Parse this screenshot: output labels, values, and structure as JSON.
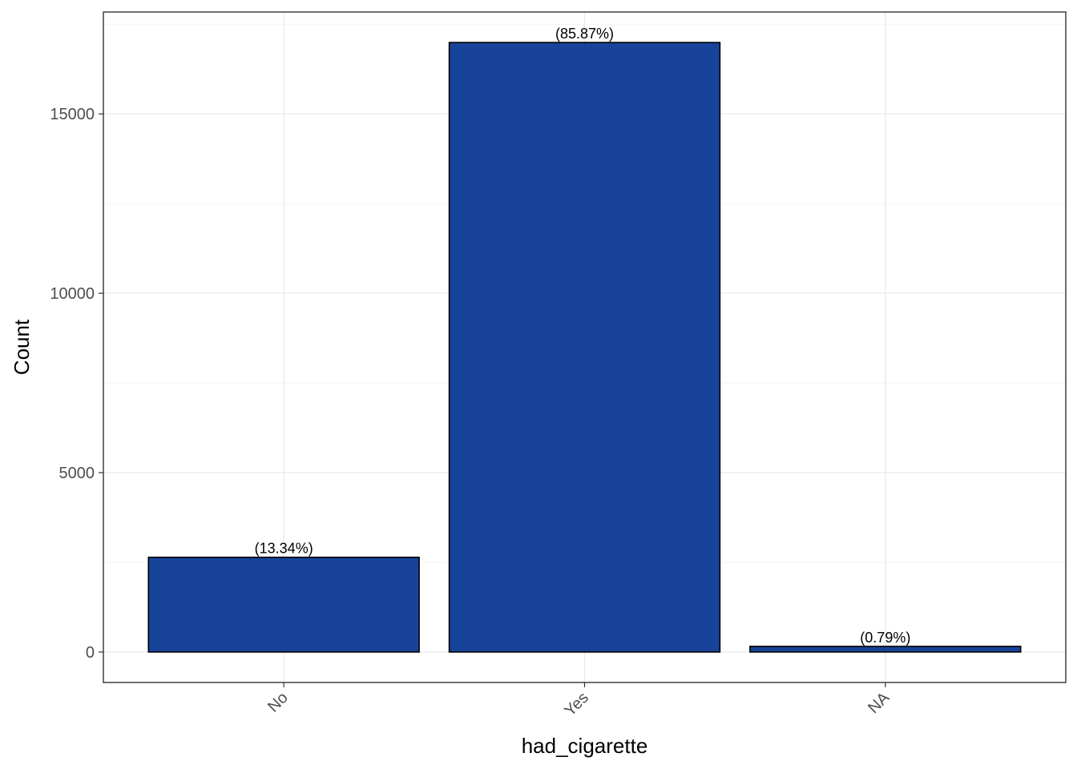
{
  "chart_data": {
    "type": "bar",
    "title": "",
    "xlabel": "had_cigarette",
    "ylabel": "Count",
    "categories": [
      "No",
      "Yes",
      "NA"
    ],
    "values": [
      2640,
      16990,
      156
    ],
    "data_labels": [
      "(13.34%)",
      "(85.87%)",
      "(0.79%)"
    ],
    "ylim": [
      -850,
      17840
    ],
    "yticks": [
      0,
      5000,
      10000,
      15000
    ],
    "ytick_labels": [
      "0",
      "5000",
      "10000",
      "15000"
    ],
    "grid": true,
    "legend": "none",
    "bar_color": "#17439A",
    "bar_outline_color": "#000000",
    "x_tick_rotation": "45 degrees"
  }
}
